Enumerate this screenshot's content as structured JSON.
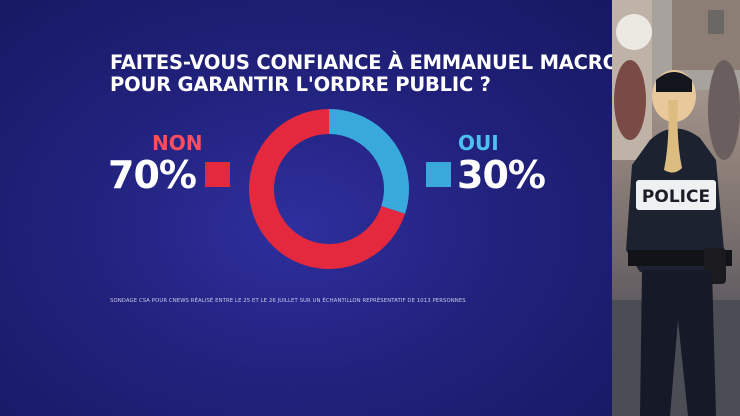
{
  "title_lines": [
    "FAITES-VOUS CONFIANCE À EMMANUEL MACRON",
    "POUR GARANTIR L'ORDRE PUBLIC ?"
  ],
  "chart_data": {
    "type": "pie",
    "style": "donut",
    "title": "FAITES-VOUS CONFIANCE À EMMANUEL MACRON POUR GARANTIR L'ORDRE PUBLIC ?",
    "slices": [
      {
        "label": "NON",
        "value": 70,
        "display": "70%",
        "color": "#e4293f"
      },
      {
        "label": "OUI",
        "value": 30,
        "display": "30%",
        "color": "#39a9dc"
      }
    ]
  },
  "footnote": "SONDAGE CSA POUR CNEWS RÉALISÉ ENTRE LE 25 ET LE 26 JUILLET SUR UN ÉCHANTILLON REPRÉSENTATIF DE 1013 PERSONNES",
  "photo": {
    "badge_text": "POLICE"
  },
  "colors": {
    "background": "#22227e",
    "non": "#e4293f",
    "oui": "#39a9dc",
    "label_non": "#ff4d5e",
    "label_oui": "#4dc0f0"
  }
}
